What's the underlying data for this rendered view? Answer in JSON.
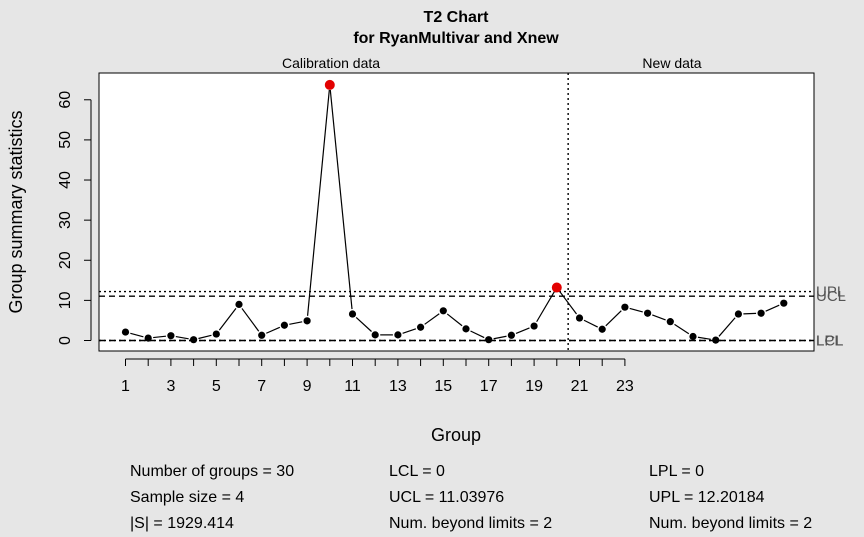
{
  "chart_data": {
    "type": "line",
    "title": "T2 Chart",
    "subtitle": "for RyanMultivar and Xnew",
    "xlabel": "Group",
    "ylabel": "Group summary statistics",
    "ylim": [
      0,
      65
    ],
    "y_ticks": [
      0,
      10,
      20,
      30,
      40,
      50,
      60
    ],
    "x_tick_labels": [
      "1",
      "3",
      "5",
      "7",
      "9",
      "11",
      "13",
      "15",
      "17",
      "19",
      "21",
      "23"
    ],
    "x_tick_positions": [
      1,
      2,
      3,
      4,
      5,
      6,
      7,
      8,
      9,
      10,
      11,
      12,
      13,
      14,
      15,
      16,
      17,
      18,
      19,
      20,
      21,
      22,
      23
    ],
    "section_labels": {
      "calibration": "Calibration data",
      "new": "New data"
    },
    "divider_x": 20.5,
    "lines": [
      {
        "name": "UPL",
        "value": 12.20184,
        "style": "dotted"
      },
      {
        "name": "UCL",
        "value": 11.03976,
        "style": "dashed"
      },
      {
        "name": "LPL",
        "value": 0,
        "style": "dotted"
      },
      {
        "name": "LCL",
        "value": 0,
        "style": "dashed"
      }
    ],
    "series": [
      {
        "x": [
          1,
          2,
          3,
          4,
          5,
          6,
          7,
          8,
          9,
          10,
          11,
          12,
          13,
          14,
          15,
          16,
          17,
          18,
          19,
          20,
          21,
          22,
          23,
          24,
          25,
          26,
          27,
          28,
          29,
          30
        ],
        "values": [
          2.1,
          0.6,
          1.2,
          0.2,
          1.6,
          9.0,
          1.3,
          3.8,
          4.9,
          63.7,
          6.6,
          1.4,
          1.4,
          3.3,
          7.4,
          2.9,
          0.2,
          1.3,
          3.6,
          13.2,
          5.6,
          2.8,
          8.3,
          6.8,
          4.7,
          1.0,
          0.1,
          6.6,
          6.8,
          9.3
        ],
        "beyond_limits": [
          10,
          20
        ]
      }
    ],
    "colors": {
      "point": "#000000",
      "beyond": "#e30000",
      "line": "#000000",
      "limit_label": "#555555"
    }
  },
  "stats": {
    "n_groups": "Number of groups = 30",
    "sample_size": "Sample size = 4",
    "det_s": "|S| = 1929.414",
    "lcl": "LCL = 0",
    "ucl": "UCL = 11.03976",
    "beyond_cl": "Num. beyond limits = 2",
    "lpl": "LPL = 0",
    "upl": "UPL = 12.20184",
    "beyond_pl": "Num. beyond limits = 2"
  }
}
